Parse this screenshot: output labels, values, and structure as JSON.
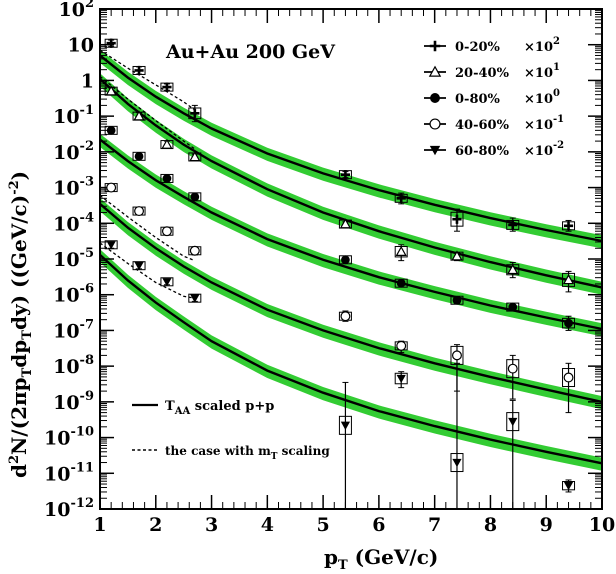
{
  "chart_data": {
    "type": "scatter",
    "log_y": true,
    "xlim": [
      1,
      10
    ],
    "ylim_exp": [
      -12,
      2
    ],
    "x_ticks": [
      "1",
      "2",
      "3",
      "4",
      "5",
      "6",
      "7",
      "8",
      "9",
      "10"
    ],
    "y_ticks": [
      {
        "base": "10",
        "exp": "-12"
      },
      {
        "base": "10",
        "exp": "-11"
      },
      {
        "base": "10",
        "exp": "-10"
      },
      {
        "base": "10",
        "exp": "-9"
      },
      {
        "base": "10",
        "exp": "-8"
      },
      {
        "base": "10",
        "exp": "-7"
      },
      {
        "base": "10",
        "exp": "-6"
      },
      {
        "base": "10",
        "exp": "-5"
      },
      {
        "base": "10",
        "exp": "-4"
      },
      {
        "base": "10",
        "exp": "-3"
      },
      {
        "base": "10",
        "exp": "-2"
      },
      {
        "base": "10",
        "exp": "-1"
      },
      {
        "base": "1",
        "exp": ""
      },
      {
        "base": "10",
        "exp": ""
      },
      {
        "base": "10",
        "exp": "2"
      }
    ],
    "title": "Au+Au 200 GeV",
    "xlabel": {
      "main": "p",
      "sub": "T",
      "rest": " (GeV/c)"
    },
    "ylabel": {
      "a": "d",
      "a_sup": "2",
      "b": "N/(2πp",
      "b_sub": "T",
      "c": "dp",
      "c_sub": "T",
      "d": "dy)  ((GeV/c)",
      "d_sup": "-2",
      "e": ")"
    },
    "legend": [
      {
        "label": "0-20%",
        "scale": "×10",
        "scale_exp": "2",
        "marker": "plus"
      },
      {
        "label": "20-40%",
        "scale": "×10",
        "scale_exp": "1",
        "marker": "open-triangle"
      },
      {
        "label": "0-80%",
        "scale": "×10",
        "scale_exp": "0",
        "marker": "filled-circle"
      },
      {
        "label": "40-60%",
        "scale": "×10",
        "scale_exp": "-1",
        "marker": "open-circle"
      },
      {
        "label": "60-80%",
        "scale": "×10",
        "scale_exp": "-2",
        "marker": "filled-triangle-down"
      }
    ],
    "line_legend": [
      {
        "style": "solid",
        "text": "T",
        "sub": "AA",
        "rest": " scaled p+p"
      },
      {
        "style": "dashed",
        "text": "the case with m",
        "sub": "T",
        "rest": " scaling"
      }
    ],
    "band_color": "#33cc33",
    "series": [
      {
        "name": "0-20%",
        "marker": "plus",
        "points": [
          {
            "x": 1.2,
            "y": 11,
            "lo": 9,
            "hi": 13.5
          },
          {
            "x": 1.7,
            "y": 1.9,
            "lo": 1.5,
            "hi": 2.4
          },
          {
            "x": 2.2,
            "y": 0.65,
            "lo": 0.53,
            "hi": 0.8
          },
          {
            "x": 2.7,
            "y": 0.12,
            "lo": 0.07,
            "hi": 0.2
          },
          {
            "x": 5.4,
            "y": 0.0023,
            "lo": 0.0019,
            "hi": 0.0028
          },
          {
            "x": 6.4,
            "y": 0.0005,
            "lo": 0.00035,
            "hi": 0.0007
          },
          {
            "x": 7.4,
            "y": 0.00013,
            "lo": 6e-05,
            "hi": 0.00025
          },
          {
            "x": 8.4,
            "y": 9e-05,
            "lo": 6e-05,
            "hi": 0.00014
          },
          {
            "x": 9.4,
            "y": 8.5e-05,
            "lo": 6e-05,
            "hi": 0.00012
          }
        ],
        "curve": [
          {
            "x": 1.0,
            "y": 5
          },
          {
            "x": 1.5,
            "y": 1.2
          },
          {
            "x": 2.0,
            "y": 0.35
          },
          {
            "x": 2.5,
            "y": 0.12
          },
          {
            "x": 3.0,
            "y": 0.045
          },
          {
            "x": 4.0,
            "y": 0.009
          },
          {
            "x": 5.0,
            "y": 0.0025
          },
          {
            "x": 6.0,
            "y": 0.00085
          },
          {
            "x": 7.0,
            "y": 0.00033
          },
          {
            "x": 8.0,
            "y": 0.00014
          },
          {
            "x": 9.0,
            "y": 6.5e-05
          },
          {
            "x": 10.0,
            "y": 3.2e-05
          }
        ],
        "dashed": [
          {
            "x": 1.0,
            "y": 7
          },
          {
            "x": 1.5,
            "y": 2.2
          },
          {
            "x": 2.0,
            "y": 0.75
          },
          {
            "x": 2.5,
            "y": 0.25
          },
          {
            "x": 2.7,
            "y": 0.15
          }
        ]
      },
      {
        "name": "20-40%",
        "marker": "open-triangle",
        "points": [
          {
            "x": 1.2,
            "y": 0.5,
            "lo": 0.4,
            "hi": 0.62
          },
          {
            "x": 1.7,
            "y": 0.1,
            "lo": 0.08,
            "hi": 0.125
          },
          {
            "x": 2.2,
            "y": 0.016,
            "lo": 0.013,
            "hi": 0.02
          },
          {
            "x": 2.7,
            "y": 0.0072,
            "lo": 0.006,
            "hi": 0.0086
          },
          {
            "x": 5.4,
            "y": 9.5e-05,
            "lo": 8e-05,
            "hi": 0.00011
          },
          {
            "x": 6.4,
            "y": 1.6e-05,
            "lo": 9e-06,
            "hi": 2.5e-05
          },
          {
            "x": 7.4,
            "y": 1.2e-05,
            "lo": 9e-06,
            "hi": 1.5e-05
          },
          {
            "x": 8.4,
            "y": 5e-06,
            "lo": 3e-06,
            "hi": 8e-06
          },
          {
            "x": 9.4,
            "y": 2.6e-06,
            "lo": 1.2e-06,
            "hi": 4.5e-06
          }
        ],
        "curve": [
          {
            "x": 1.0,
            "y": 1.1
          },
          {
            "x": 1.5,
            "y": 0.22
          },
          {
            "x": 2.0,
            "y": 0.055
          },
          {
            "x": 2.5,
            "y": 0.016
          },
          {
            "x": 3.0,
            "y": 0.0055
          },
          {
            "x": 4.0,
            "y": 0.0009
          },
          {
            "x": 5.0,
            "y": 0.0002
          },
          {
            "x": 6.0,
            "y": 6e-05
          },
          {
            "x": 7.0,
            "y": 2.1e-05
          },
          {
            "x": 8.0,
            "y": 8.2e-06
          },
          {
            "x": 9.0,
            "y": 3.5e-06
          },
          {
            "x": 10.0,
            "y": 1.6e-06
          }
        ],
        "dashed": [
          {
            "x": 1.0,
            "y": 1.3
          },
          {
            "x": 1.5,
            "y": 0.3
          },
          {
            "x": 2.0,
            "y": 0.075
          },
          {
            "x": 2.5,
            "y": 0.02
          },
          {
            "x": 2.7,
            "y": 0.012
          }
        ]
      },
      {
        "name": "0-80%",
        "marker": "filled-circle",
        "points": [
          {
            "x": 1.2,
            "y": 0.04,
            "lo": 0.033,
            "hi": 0.048
          },
          {
            "x": 1.7,
            "y": 0.0075,
            "lo": 0.0063,
            "hi": 0.009
          },
          {
            "x": 2.2,
            "y": 0.0018,
            "lo": 0.0015,
            "hi": 0.0021
          },
          {
            "x": 2.7,
            "y": 0.00055,
            "lo": 0.00046,
            "hi": 0.00065
          },
          {
            "x": 5.4,
            "y": 9.5e-06,
            "lo": 8.2e-06,
            "hi": 1.1e-05
          },
          {
            "x": 6.4,
            "y": 2.1e-06,
            "lo": 1.8e-06,
            "hi": 2.5e-06
          },
          {
            "x": 7.4,
            "y": 7e-07,
            "lo": 5.5e-07,
            "hi": 8.8e-07
          },
          {
            "x": 8.4,
            "y": 4.5e-07,
            "lo": 3.7e-07,
            "hi": 5.3e-07
          },
          {
            "x": 9.4,
            "y": 1.6e-07,
            "lo": 1e-07,
            "hi": 2.5e-07
          }
        ],
        "curve": [
          {
            "x": 1.0,
            "y": 0.022
          },
          {
            "x": 1.5,
            "y": 0.0055
          },
          {
            "x": 2.0,
            "y": 0.0016
          },
          {
            "x": 2.5,
            "y": 0.00055
          },
          {
            "x": 3.0,
            "y": 0.0002
          },
          {
            "x": 4.0,
            "y": 3.6e-05
          },
          {
            "x": 5.0,
            "y": 9.5e-06
          },
          {
            "x": 6.0,
            "y": 3.1e-06
          },
          {
            "x": 7.0,
            "y": 1.2e-06
          },
          {
            "x": 8.0,
            "y": 5e-07
          },
          {
            "x": 9.0,
            "y": 2.3e-07
          },
          {
            "x": 10.0,
            "y": 1.1e-07
          }
        ],
        "dashed": []
      },
      {
        "name": "40-60%",
        "marker": "open-circle",
        "points": [
          {
            "x": 1.2,
            "y": 0.001,
            "lo": 0.0008,
            "hi": 0.00125
          },
          {
            "x": 1.7,
            "y": 0.00022,
            "lo": 0.00018,
            "hi": 0.00027
          },
          {
            "x": 2.2,
            "y": 6e-05,
            "lo": 5e-05,
            "hi": 7.2e-05
          },
          {
            "x": 2.7,
            "y": 1.7e-05,
            "lo": 1.3e-05,
            "hi": 2.2e-05
          },
          {
            "x": 5.4,
            "y": 2.5e-07,
            "lo": 1.8e-07,
            "hi": 3.5e-07
          },
          {
            "x": 6.4,
            "y": 3.7e-08,
            "lo": 2.4e-08,
            "hi": 5e-08
          },
          {
            "x": 7.4,
            "y": 2e-08,
            "lo": 2e-09,
            "hi": 4e-08
          },
          {
            "x": 8.4,
            "y": 8.5e-09,
            "lo": 1.2e-09,
            "hi": 2e-08
          },
          {
            "x": 9.4,
            "y": 4.8e-09,
            "lo": 5e-10,
            "hi": 1.2e-08
          }
        ],
        "curve": [
          {
            "x": 1.0,
            "y": 0.00035
          },
          {
            "x": 1.5,
            "y": 7.5e-05
          },
          {
            "x": 2.0,
            "y": 2e-05
          },
          {
            "x": 2.5,
            "y": 6.2e-06
          },
          {
            "x": 3.0,
            "y": 2.2e-06
          },
          {
            "x": 4.0,
            "y": 3.8e-07
          },
          {
            "x": 5.0,
            "y": 1e-07
          },
          {
            "x": 6.0,
            "y": 3.2e-08
          },
          {
            "x": 7.0,
            "y": 1.2e-08
          },
          {
            "x": 8.0,
            "y": 5e-09
          },
          {
            "x": 9.0,
            "y": 2.2e-09
          },
          {
            "x": 10.0,
            "y": 1e-09
          }
        ],
        "dashed": [
          {
            "x": 1.0,
            "y": 0.0006
          },
          {
            "x": 1.5,
            "y": 0.00015
          },
          {
            "x": 2.0,
            "y": 4e-05
          },
          {
            "x": 2.5,
            "y": 1.2e-05
          },
          {
            "x": 2.7,
            "y": 9e-06
          }
        ]
      },
      {
        "name": "60-80%",
        "marker": "filled-triangle-down",
        "points": [
          {
            "x": 1.2,
            "y": 2.5e-05,
            "lo": 2e-05,
            "hi": 3e-05
          },
          {
            "x": 1.7,
            "y": 6.5e-06,
            "lo": 5.3e-06,
            "hi": 7.8e-06
          },
          {
            "x": 2.2,
            "y": 2.3e-06,
            "lo": 1.9e-06,
            "hi": 2.7e-06
          },
          {
            "x": 2.7,
            "y": 8e-07,
            "lo": 6.5e-07,
            "hi": 9.5e-07
          },
          {
            "x": 5.4,
            "y": 2.2e-10,
            "lo": 1e-12,
            "hi": 3.5e-09
          },
          {
            "x": 6.4,
            "y": 4.5e-09,
            "lo": 2.5e-09,
            "hi": 7e-09
          },
          {
            "x": 7.4,
            "y": 2e-11,
            "lo": 1e-12,
            "hi": 1.2e-08
          },
          {
            "x": 8.4,
            "y": 2.8e-10,
            "lo": 1e-12,
            "hi": 1.1e-09
          },
          {
            "x": 9.4,
            "y": 4.5e-12,
            "lo": 3e-12,
            "hi": 6.5e-12
          }
        ],
        "curve": [
          {
            "x": 1.0,
            "y": 1.3e-05
          },
          {
            "x": 1.5,
            "y": 2.5e-06
          },
          {
            "x": 2.0,
            "y": 6e-07
          },
          {
            "x": 2.5,
            "y": 1.7e-07
          },
          {
            "x": 3.0,
            "y": 5e-08
          },
          {
            "x": 4.0,
            "y": 7.5e-09
          },
          {
            "x": 5.0,
            "y": 1.8e-09
          },
          {
            "x": 6.0,
            "y": 5.5e-10
          },
          {
            "x": 7.0,
            "y": 2.1e-10
          },
          {
            "x": 8.0,
            "y": 8.8e-11
          },
          {
            "x": 9.0,
            "y": 4e-11
          },
          {
            "x": 10.0,
            "y": 1.9e-11
          }
        ],
        "dashed": [
          {
            "x": 1.0,
            "y": 2.8e-05
          },
          {
            "x": 1.5,
            "y": 7.5e-06
          },
          {
            "x": 2.0,
            "y": 2.2e-06
          },
          {
            "x": 2.5,
            "y": 9e-07
          },
          {
            "x": 2.7,
            "y": 8e-07
          }
        ]
      }
    ]
  }
}
